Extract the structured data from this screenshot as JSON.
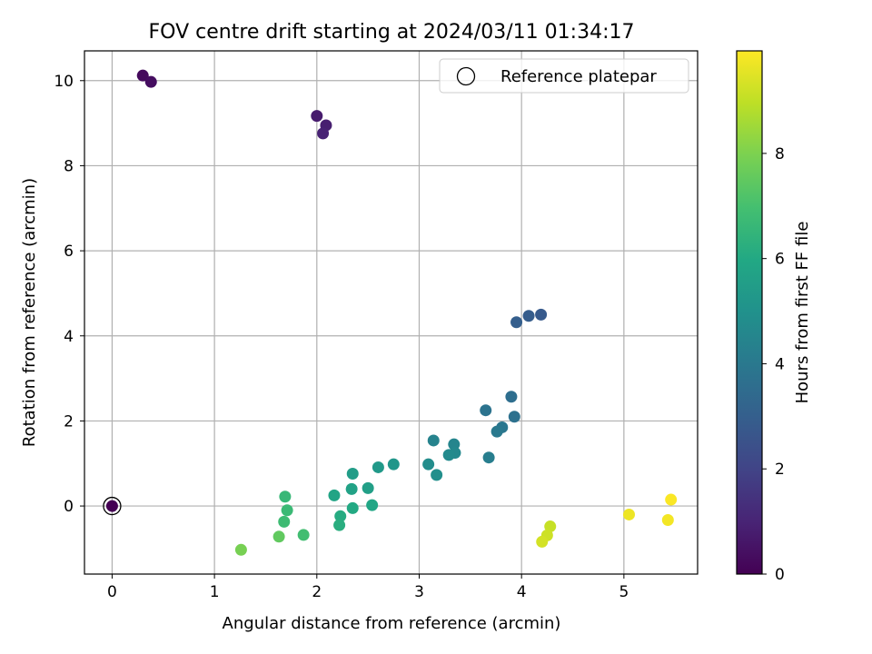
{
  "chart_data": {
    "type": "scatter",
    "title": "FOV centre drift starting at 2024/03/11 01:34:17",
    "xlabel": "Angular distance from reference (arcmin)",
    "ylabel": "Rotation from reference (arcmin)",
    "xlim": [
      -0.27,
      5.72
    ],
    "ylim": [
      -1.6,
      10.7
    ],
    "xticks": [
      0,
      1,
      2,
      3,
      4,
      5
    ],
    "yticks": [
      0,
      2,
      4,
      6,
      8,
      10
    ],
    "grid": true,
    "legend": {
      "placement": "top-right",
      "entries": [
        "Reference platepar"
      ]
    },
    "reference_point": {
      "x": 0,
      "y": 0
    },
    "colorbar": {
      "label": "Hours from first FF file",
      "colormap": "viridis",
      "range": [
        0,
        9.95
      ],
      "ticks": [
        0,
        2,
        4,
        6,
        8
      ]
    },
    "points": [
      {
        "x": 0.0,
        "y": 0.0,
        "h": 0.0
      },
      {
        "x": 0.3,
        "y": 10.12,
        "h": 0.25
      },
      {
        "x": 0.38,
        "y": 9.97,
        "h": 0.35
      },
      {
        "x": 2.0,
        "y": 9.17,
        "h": 0.75
      },
      {
        "x": 2.09,
        "y": 8.95,
        "h": 0.85
      },
      {
        "x": 2.06,
        "y": 8.76,
        "h": 0.95
      },
      {
        "x": 4.19,
        "y": 4.5,
        "h": 2.8
      },
      {
        "x": 4.07,
        "y": 4.47,
        "h": 2.9
      },
      {
        "x": 3.95,
        "y": 4.32,
        "h": 3.0
      },
      {
        "x": 3.9,
        "y": 2.57,
        "h": 3.6
      },
      {
        "x": 3.93,
        "y": 2.1,
        "h": 3.7
      },
      {
        "x": 3.65,
        "y": 2.25,
        "h": 3.8
      },
      {
        "x": 3.81,
        "y": 1.85,
        "h": 3.9
      },
      {
        "x": 3.76,
        "y": 1.75,
        "h": 4.0
      },
      {
        "x": 3.68,
        "y": 1.14,
        "h": 4.2
      },
      {
        "x": 3.14,
        "y": 1.54,
        "h": 4.4
      },
      {
        "x": 3.34,
        "y": 1.45,
        "h": 4.5
      },
      {
        "x": 3.35,
        "y": 1.25,
        "h": 4.6
      },
      {
        "x": 3.29,
        "y": 1.2,
        "h": 4.7
      },
      {
        "x": 3.09,
        "y": 0.98,
        "h": 4.8
      },
      {
        "x": 3.17,
        "y": 0.73,
        "h": 4.9
      },
      {
        "x": 2.75,
        "y": 0.98,
        "h": 5.2
      },
      {
        "x": 2.6,
        "y": 0.91,
        "h": 5.3
      },
      {
        "x": 2.35,
        "y": 0.76,
        "h": 5.5
      },
      {
        "x": 2.5,
        "y": 0.42,
        "h": 5.6
      },
      {
        "x": 2.34,
        "y": 0.4,
        "h": 5.7
      },
      {
        "x": 2.17,
        "y": 0.25,
        "h": 5.8
      },
      {
        "x": 2.54,
        "y": 0.02,
        "h": 5.9
      },
      {
        "x": 2.35,
        "y": -0.05,
        "h": 6.0
      },
      {
        "x": 2.23,
        "y": -0.24,
        "h": 6.1
      },
      {
        "x": 2.22,
        "y": -0.45,
        "h": 6.2
      },
      {
        "x": 1.69,
        "y": 0.22,
        "h": 6.6
      },
      {
        "x": 1.71,
        "y": -0.1,
        "h": 6.7
      },
      {
        "x": 1.68,
        "y": -0.37,
        "h": 6.8
      },
      {
        "x": 1.87,
        "y": -0.68,
        "h": 6.9
      },
      {
        "x": 1.63,
        "y": -0.72,
        "h": 7.5
      },
      {
        "x": 1.26,
        "y": -1.03,
        "h": 7.9
      },
      {
        "x": 4.28,
        "y": -0.48,
        "h": 9.1
      },
      {
        "x": 4.25,
        "y": -0.69,
        "h": 9.2
      },
      {
        "x": 4.2,
        "y": -0.84,
        "h": 9.3
      },
      {
        "x": 5.05,
        "y": -0.2,
        "h": 9.7
      },
      {
        "x": 5.43,
        "y": -0.33,
        "h": 9.8
      },
      {
        "x": 5.46,
        "y": 0.15,
        "h": 9.9
      }
    ]
  }
}
